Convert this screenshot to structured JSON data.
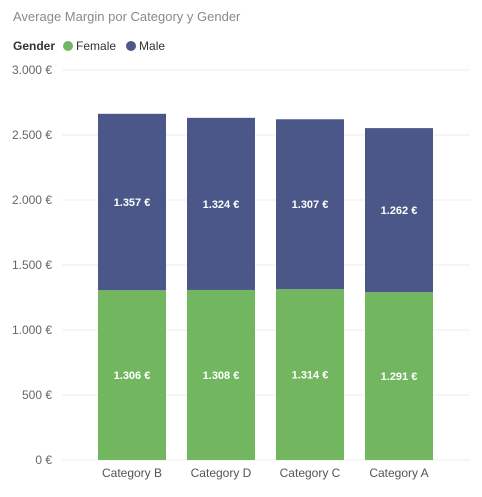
{
  "chart_data": {
    "type": "bar",
    "stacked": true,
    "title": "Average Margin por Category y Gender",
    "legend": {
      "title": "Gender",
      "placement": "top-left"
    },
    "categories": [
      "Category B",
      "Category D",
      "Category C",
      "Category A"
    ],
    "series": [
      {
        "name": "Female",
        "color": "#72b660",
        "values": [
          1306,
          1308,
          1314,
          1291
        ],
        "labels": [
          "1.306 €",
          "1.308 €",
          "1.314 €",
          "1.291 €"
        ]
      },
      {
        "name": "Male",
        "color": "#4a5788",
        "values": [
          1357,
          1324,
          1307,
          1262
        ],
        "labels": [
          "1.357 €",
          "1.324 €",
          "1.307 €",
          "1.262 €"
        ]
      }
    ],
    "ylim": [
      0,
      3000
    ],
    "yticks": [
      0,
      500,
      1000,
      1500,
      2000,
      2500,
      3000
    ],
    "ytick_labels": [
      "0 €",
      "500 €",
      "1.000 €",
      "1.500 €",
      "2.000 €",
      "2.500 €",
      "3.000 €"
    ],
    "grid": true,
    "xlabel": "",
    "ylabel": ""
  }
}
